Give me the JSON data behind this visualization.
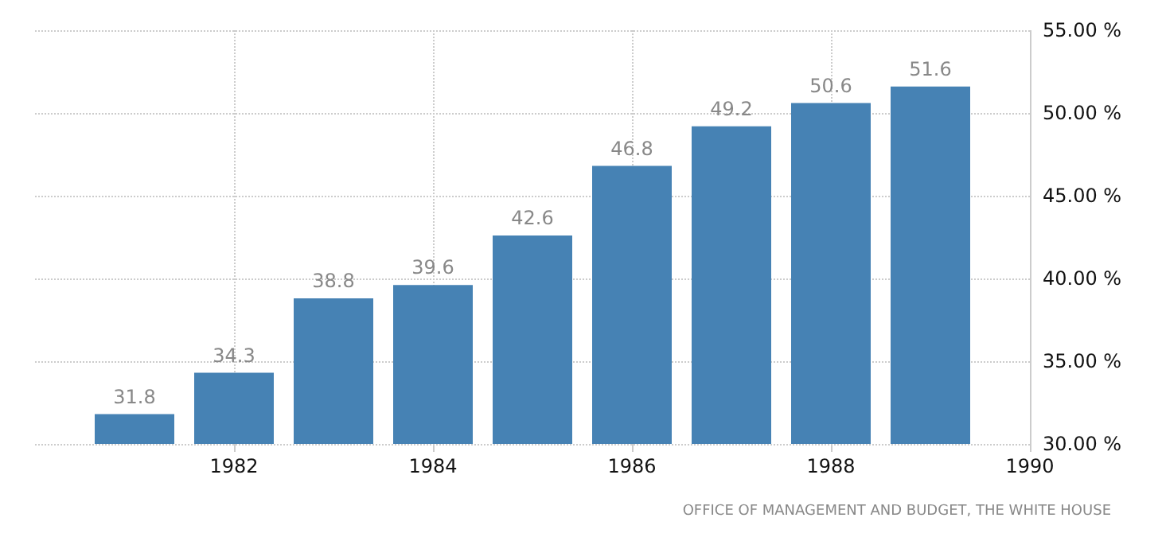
{
  "chart_data": {
    "type": "bar",
    "x": [
      1981,
      1982,
      1983,
      1984,
      1985,
      1986,
      1987,
      1988,
      1989
    ],
    "values": [
      31.8,
      34.3,
      38.8,
      39.6,
      42.6,
      46.8,
      49.2,
      50.6,
      51.6
    ],
    "color": "#4682b4",
    "xlim": [
      1980,
      1990
    ],
    "xticks": [
      1982,
      1984,
      1986,
      1988,
      1990
    ],
    "ylim": [
      30,
      55
    ],
    "yticks": [
      {
        "value": 30,
        "label": "30.00 %"
      },
      {
        "value": 35,
        "label": "35.00 %"
      },
      {
        "value": 40,
        "label": "40.00 %"
      },
      {
        "value": 45,
        "label": "45.00 %"
      },
      {
        "value": 50,
        "label": "50.00 %"
      },
      {
        "value": 55,
        "label": "55.00 %"
      }
    ],
    "grid": true,
    "data_labels": true,
    "annotations": [
      "OFFICE OF MANAGEMENT AND BUDGET, THE WHITE HOUSE"
    ]
  }
}
